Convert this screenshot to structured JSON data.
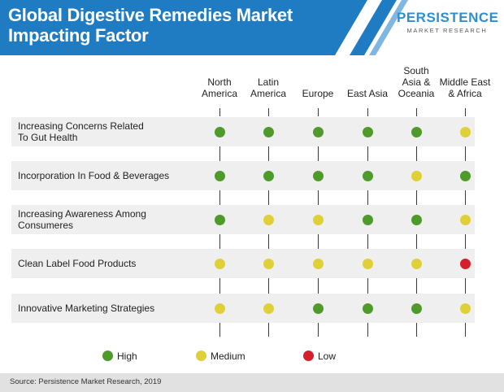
{
  "header": {
    "title_line1": "Global Digestive Remedies Market",
    "title_line2": "Impacting Factor",
    "brand_accent": "#2d8fd1",
    "header_blue": "#1f7cc2"
  },
  "logo": {
    "word": "PERSISTENCE",
    "subtitle": "MARKET RESEARCH"
  },
  "chart_data": {
    "type": "table",
    "columns": [
      {
        "line1": "North",
        "line2": "America"
      },
      {
        "line1": "Latin",
        "line2": "America"
      },
      {
        "line1": "Europe",
        "line2": ""
      },
      {
        "line1": "East Asia",
        "line2": ""
      },
      {
        "line1": "South",
        "line2": "Asia &",
        "line3": "Oceania"
      },
      {
        "line1": "Middle East",
        "line2": "& Africa"
      }
    ],
    "rows": [
      {
        "line1": "Increasing Concerns Related",
        "line2": "To Gut Health",
        "values": [
          "High",
          "High",
          "High",
          "High",
          "High",
          "Medium"
        ]
      },
      {
        "line1": "Incorporation In Food & Beverages",
        "line2": "",
        "values": [
          "High",
          "High",
          "High",
          "High",
          "Medium",
          "High"
        ]
      },
      {
        "line1": "Increasing Awareness Among",
        "line2": "Consumeres",
        "values": [
          "High",
          "Medium",
          "Medium",
          "High",
          "High",
          "Medium"
        ]
      },
      {
        "line1": "Clean Label Food Products",
        "line2": "",
        "values": [
          "Medium",
          "Medium",
          "Medium",
          "Medium",
          "Medium",
          "Low"
        ]
      },
      {
        "line1": "Innovative Marketing Strategies",
        "line2": "",
        "values": [
          "Medium",
          "Medium",
          "High",
          "High",
          "High",
          "Medium"
        ]
      }
    ],
    "legend": [
      {
        "label": "High",
        "color": "#4e9a2b"
      },
      {
        "label": "Medium",
        "color": "#dfd03a"
      },
      {
        "label": "Low",
        "color": "#d71f2b"
      }
    ]
  },
  "footer": {
    "source": "Source: Persistence Market Research, 2019"
  }
}
